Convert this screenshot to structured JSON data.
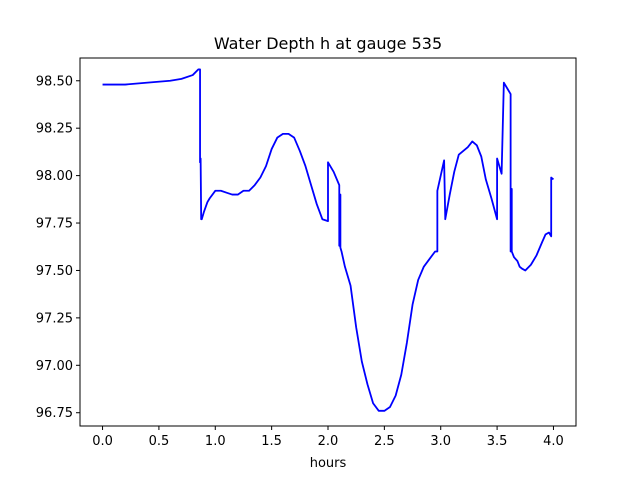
{
  "chart_data": {
    "type": "line",
    "title": "Water Depth h at gauge 535",
    "xlabel": "hours",
    "ylabel": "",
    "xlim": [
      -0.2,
      4.2
    ],
    "ylim": [
      96.68,
      98.62
    ],
    "xticks": [
      0.0,
      0.5,
      1.0,
      1.5,
      2.0,
      2.5,
      3.0,
      3.5,
      4.0
    ],
    "xtick_labels": [
      "0.0",
      "0.5",
      "1.0",
      "1.5",
      "2.0",
      "2.5",
      "3.0",
      "3.5",
      "4.0"
    ],
    "yticks": [
      96.75,
      97.0,
      97.25,
      97.5,
      97.75,
      98.0,
      98.25,
      98.5
    ],
    "ytick_labels": [
      "96.75",
      "97.00",
      "97.25",
      "97.50",
      "97.75",
      "98.00",
      "98.25",
      "98.50"
    ],
    "grid": false,
    "legend": "none",
    "series": [
      {
        "color": "#0000ff",
        "x": [
          0.0,
          0.2,
          0.4,
          0.6,
          0.7,
          0.8,
          0.85,
          0.865,
          0.865,
          0.87,
          0.875,
          0.88,
          0.9,
          0.93,
          0.95,
          1.0,
          1.05,
          1.1,
          1.15,
          1.2,
          1.25,
          1.3,
          1.35,
          1.4,
          1.45,
          1.5,
          1.55,
          1.6,
          1.65,
          1.7,
          1.75,
          1.8,
          1.85,
          1.9,
          1.95,
          2.0,
          2.0,
          2.05,
          2.1,
          2.1,
          2.11,
          2.11,
          2.12,
          2.15,
          2.2,
          2.25,
          2.3,
          2.35,
          2.4,
          2.45,
          2.5,
          2.55,
          2.6,
          2.65,
          2.7,
          2.75,
          2.8,
          2.85,
          2.9,
          2.95,
          2.97,
          2.97,
          3.0,
          3.03,
          3.04,
          3.04,
          3.08,
          3.12,
          3.16,
          3.2,
          3.24,
          3.28,
          3.32,
          3.36,
          3.4,
          3.45,
          3.5,
          3.5,
          3.54,
          3.56,
          3.56,
          3.62,
          3.62,
          3.63,
          3.63,
          3.65,
          3.68,
          3.7,
          3.72,
          3.75,
          3.8,
          3.85,
          3.9,
          3.93,
          3.96,
          3.98,
          3.98,
          4.0
        ],
        "y": [
          98.48,
          98.48,
          98.49,
          98.5,
          98.51,
          98.53,
          98.56,
          98.56,
          98.07,
          98.09,
          97.77,
          97.77,
          97.81,
          97.86,
          97.88,
          97.92,
          97.92,
          97.91,
          97.9,
          97.9,
          97.92,
          97.92,
          97.95,
          97.99,
          98.05,
          98.14,
          98.2,
          98.22,
          98.22,
          98.2,
          98.13,
          98.05,
          97.95,
          97.85,
          97.77,
          97.76,
          98.07,
          98.02,
          97.95,
          97.63,
          97.9,
          97.62,
          97.6,
          97.52,
          97.42,
          97.2,
          97.02,
          96.9,
          96.8,
          96.76,
          96.76,
          96.78,
          96.84,
          96.95,
          97.12,
          97.32,
          97.45,
          97.52,
          97.56,
          97.6,
          97.6,
          97.92,
          98.0,
          98.08,
          97.78,
          97.77,
          97.9,
          98.02,
          98.11,
          98.13,
          98.15,
          98.18,
          98.16,
          98.1,
          97.98,
          97.88,
          97.77,
          98.09,
          98.01,
          98.49,
          98.49,
          98.43,
          97.6,
          97.93,
          97.6,
          97.57,
          97.55,
          97.52,
          97.51,
          97.5,
          97.53,
          97.58,
          97.65,
          97.69,
          97.7,
          97.68,
          97.99,
          97.98
        ]
      }
    ]
  }
}
